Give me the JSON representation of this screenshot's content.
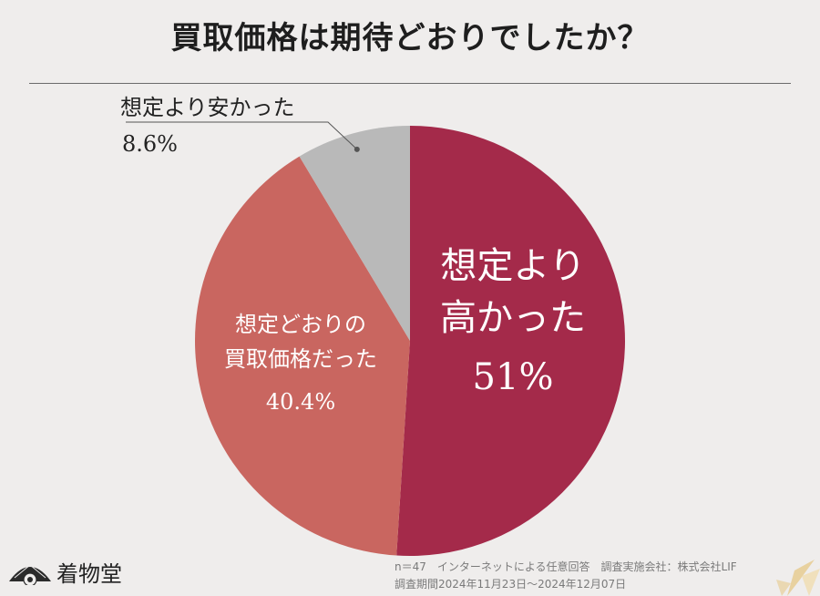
{
  "title": "買取価格は期待どおりでしたか？",
  "chart_data": {
    "type": "pie",
    "slices": [
      {
        "label_lines": [
          "想定より",
          "高かった"
        ],
        "value": 51,
        "display": "51%",
        "color": "#a42a4a"
      },
      {
        "label_lines": [
          "想定どおりの",
          "買取価格だった"
        ],
        "value": 40.4,
        "display": "40.4%",
        "color": "#c96660"
      },
      {
        "label_lines": [
          "想定より安かった"
        ],
        "value": 8.6,
        "display": "8.6%",
        "color": "#b9b9b9"
      }
    ]
  },
  "footer": {
    "line1": "n＝47　インターネットによる任意回答　調査実施会社：株式会社LIF",
    "line2": "調査期間2024年11月23日～2024年12月07日"
  },
  "brand": {
    "name": "着物堂"
  },
  "icons": {
    "brand_logo": "fan-icon",
    "decoration": "leaf-icon"
  }
}
